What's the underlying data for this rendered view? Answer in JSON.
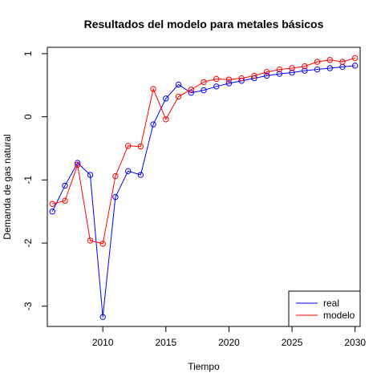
{
  "chart_data": {
    "type": "line",
    "title": "Resultados del modelo para metales básicos",
    "xlabel": "Tiempo",
    "ylabel": "Demanda de gas natural",
    "xlim": [
      2005.6,
      2030.4
    ],
    "ylim": [
      -3.32,
      1.1
    ],
    "x_ticks": [
      2010,
      2015,
      2020,
      2025,
      2030
    ],
    "y_ticks": [
      1,
      0,
      -1,
      -2,
      -3
    ],
    "x": [
      2006,
      2007,
      2008,
      2009,
      2010,
      2011,
      2012,
      2013,
      2014,
      2015,
      2016,
      2017,
      2018,
      2019,
      2020,
      2021,
      2022,
      2023,
      2024,
      2025,
      2026,
      2027,
      2028,
      2029,
      2030
    ],
    "series": [
      {
        "name": "real",
        "color": "#0000ff",
        "values": [
          -1.5,
          -1.09,
          -0.73,
          -0.92,
          -3.17,
          -1.27,
          -0.86,
          -0.92,
          -0.12,
          0.29,
          0.51,
          0.38,
          0.42,
          0.48,
          0.53,
          0.57,
          0.61,
          0.65,
          0.68,
          0.7,
          0.73,
          0.75,
          0.77,
          0.79,
          0.81
        ]
      },
      {
        "name": "modelo",
        "color": "#ff0000",
        "values": [
          -1.38,
          -1.33,
          -0.76,
          -1.96,
          -2.01,
          -0.94,
          -0.46,
          -0.47,
          0.44,
          -0.04,
          0.32,
          0.43,
          0.55,
          0.6,
          0.59,
          0.61,
          0.65,
          0.71,
          0.75,
          0.77,
          0.8,
          0.87,
          0.9,
          0.87,
          0.93
        ]
      }
    ],
    "legend_position": "bottom-right",
    "grid": false
  }
}
